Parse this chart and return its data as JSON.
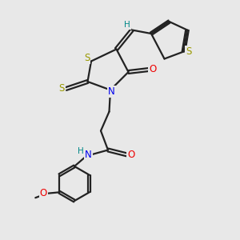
{
  "bg_color": "#e8e8e8",
  "bond_color": "#222222",
  "bond_width": 1.6,
  "atom_colors": {
    "S": "#999900",
    "N": "#0000ee",
    "O": "#ee0000",
    "H": "#008888",
    "C": "#222222"
  },
  "font_size_atom": 8.5,
  "font_size_H": 7.5
}
